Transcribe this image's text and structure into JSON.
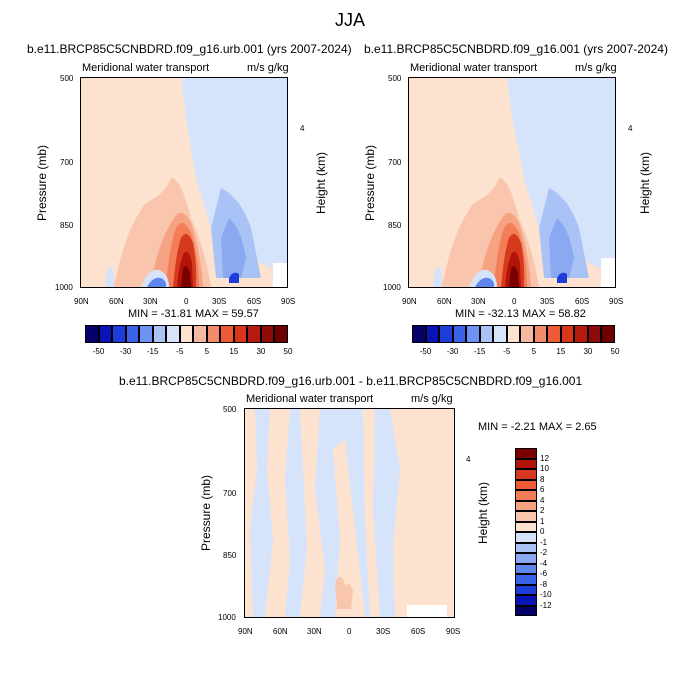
{
  "title": "JJA",
  "xticks": [
    "90N",
    "60N",
    "30N",
    "0",
    "30S",
    "60S",
    "90S"
  ],
  "pticks": [
    "500",
    "700",
    "850",
    "1000"
  ],
  "height_tick": "4",
  "ylabel": "Pressure (mb)",
  "right_label": "Height (km)",
  "left_text": "Meridional water transport",
  "right_text": "m/s g/kg",
  "panels": [
    {
      "title": "b.e11.BRCP85C5CNBDRD.f09_g16.urb.001 (yrs 2007-2024)",
      "stats": "MIN = -31.81  MAX =  59.57"
    },
    {
      "title": "b.e11.BRCP85C5CNBDRD.f09_g16.001 (yrs 2007-2024)",
      "stats": "MIN = -32.13  MAX =  58.82"
    },
    {
      "title": "b.e11.BRCP85C5CNBDRD.f09_g16.urb.001 - b.e11.BRCP85C5CNBDRD.f09_g16.001",
      "stats": "MIN =  -2.21  MAX =   2.65"
    }
  ],
  "colorbar_top": {
    "labels": [
      "-50",
      "-30",
      "-15",
      "-5",
      "5",
      "15",
      "30",
      "50"
    ],
    "colors": [
      "#05006a",
      "#0a13b6",
      "#1e3cd9",
      "#3a63ea",
      "#6c92f3",
      "#a9c3f6",
      "#d5e3fb",
      "#fde3cf",
      "#f7b8a0",
      "#f38c6a",
      "#ec5a36",
      "#d9361b",
      "#b81b0d",
      "#8e0b07",
      "#6d0000"
    ]
  },
  "colorbar_diff": {
    "labels": [
      "12",
      "10",
      "8",
      "6",
      "4",
      "2",
      "1",
      "0",
      "-1",
      "-2",
      "-4",
      "-6",
      "-8",
      "-10",
      "-12"
    ],
    "colors": [
      "#7a0000",
      "#b3140a",
      "#d63a1e",
      "#ec5b36",
      "#f27d57",
      "#f6a383",
      "#f9c6ad",
      "#fde3cf",
      "#d5e3fb",
      "#a9c3f6",
      "#8aa9f1",
      "#5f86ec",
      "#3a63ea",
      "#1e3cd9",
      "#0a13b6",
      "#05006a"
    ]
  },
  "chart_data": [
    {
      "type": "heatmap",
      "title": "b.e11.BRCP85C5CNBDRD.f09_g16.urb.001 (yrs 2007-2024)",
      "subtitle_left": "Meridional water transport",
      "subtitle_right": "m/s g/kg",
      "xlabel": "",
      "ylabel": "Pressure (mb)",
      "y2label": "Height (km)",
      "x_ticks": [
        "90N",
        "60N",
        "30N",
        "0",
        "30S",
        "60S",
        "90S"
      ],
      "y_ticks": [
        500,
        700,
        850,
        1000
      ],
      "min": -31.81,
      "max": 59.57
    },
    {
      "type": "heatmap",
      "title": "b.e11.BRCP85C5CNBDRD.f09_g16.001 (yrs 2007-2024)",
      "subtitle_left": "Meridional water transport",
      "subtitle_right": "m/s g/kg",
      "xlabel": "",
      "ylabel": "Pressure (mb)",
      "y2label": "Height (km)",
      "x_ticks": [
        "90N",
        "60N",
        "30N",
        "0",
        "30S",
        "60S",
        "90S"
      ],
      "y_ticks": [
        500,
        700,
        850,
        1000
      ],
      "min": -32.13,
      "max": 58.82
    },
    {
      "type": "heatmap",
      "title": "b.e11.BRCP85C5CNBDRD.f09_g16.urb.001 - b.e11.BRCP85C5CNBDRD.f09_g16.001",
      "subtitle_left": "Meridional water transport",
      "subtitle_right": "m/s g/kg",
      "xlabel": "",
      "ylabel": "Pressure (mb)",
      "y2label": "Height (km)",
      "x_ticks": [
        "90N",
        "60N",
        "30N",
        "0",
        "30S",
        "60S",
        "90S"
      ],
      "y_ticks": [
        500,
        700,
        850,
        1000
      ],
      "min": -2.21,
      "max": 2.65
    }
  ]
}
